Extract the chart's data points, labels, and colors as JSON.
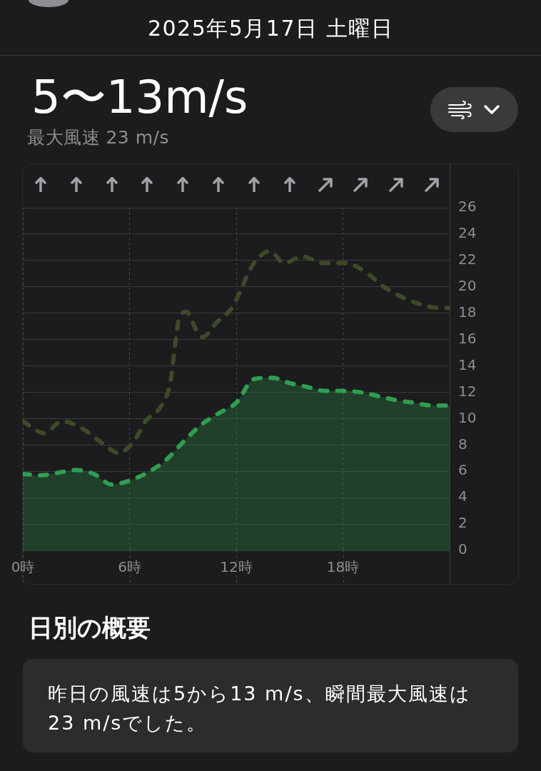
{
  "chart_data": {
    "type": "line",
    "title": "5〜13m/s",
    "subtitle": "最大風速 23 m/s",
    "annotations": [
      "2025年5月17日 土曜日",
      "日別の概要",
      "昨日の風速は5から13 m/s、瞬間最大風速は23 m/sでした。"
    ],
    "series": [
      {
        "type": "line",
        "color": "#3d4a29",
        "line_style": "dashed",
        "x": [
          0,
          1.2,
          2.2,
          3.4,
          4.4,
          5.4,
          6.3,
          6.9,
          7.8,
          8.3,
          8.6,
          8.8,
          9.2,
          9.8,
          10.1,
          10.9,
          11.8,
          12.3,
          12.9,
          13.6,
          13.9,
          14.7,
          15.7,
          16.9,
          18.1,
          19.2,
          20.2,
          21.2,
          22.3,
          23.4,
          24
        ],
        "values": [
          9.8,
          8.9,
          9.8,
          9.2,
          8.2,
          7.4,
          8.4,
          9.8,
          11.0,
          12.8,
          16.0,
          17.7,
          18.1,
          16.6,
          16.2,
          17.3,
          18.5,
          19.9,
          21.6,
          22.6,
          22.7,
          21.8,
          22.3,
          21.8,
          21.8,
          21.2,
          20.1,
          19.3,
          18.7,
          18.4,
          18.4
        ]
      },
      {
        "type": "area",
        "color": "#2f9e50",
        "line_style": "dashed",
        "x": [
          0,
          1,
          2,
          3,
          4,
          5,
          6,
          7,
          8,
          9,
          10,
          11,
          12,
          13,
          14,
          15,
          16,
          17,
          18,
          19,
          20,
          21,
          22,
          23,
          24
        ],
        "values": [
          5.8,
          5.7,
          5.9,
          6.1,
          5.8,
          5.0,
          5.3,
          5.9,
          6.8,
          8.2,
          9.5,
          10.4,
          11.2,
          13.0,
          13.1,
          12.7,
          12.4,
          12.1,
          12.1,
          12.0,
          11.7,
          11.4,
          11.2,
          11.0,
          11.0
        ]
      }
    ],
    "xlim": [
      0,
      24
    ],
    "xticks": [
      {
        "value": 0,
        "label": "0時"
      },
      {
        "value": 6,
        "label": "6時"
      },
      {
        "value": 12,
        "label": "12時"
      },
      {
        "value": 18,
        "label": "18時"
      }
    ],
    "ylim": [
      0,
      26
    ],
    "yticks": [
      0,
      2,
      4,
      6,
      8,
      10,
      12,
      14,
      16,
      18,
      20,
      22,
      24,
      26
    ],
    "grid": true,
    "marker": "none"
  }
}
